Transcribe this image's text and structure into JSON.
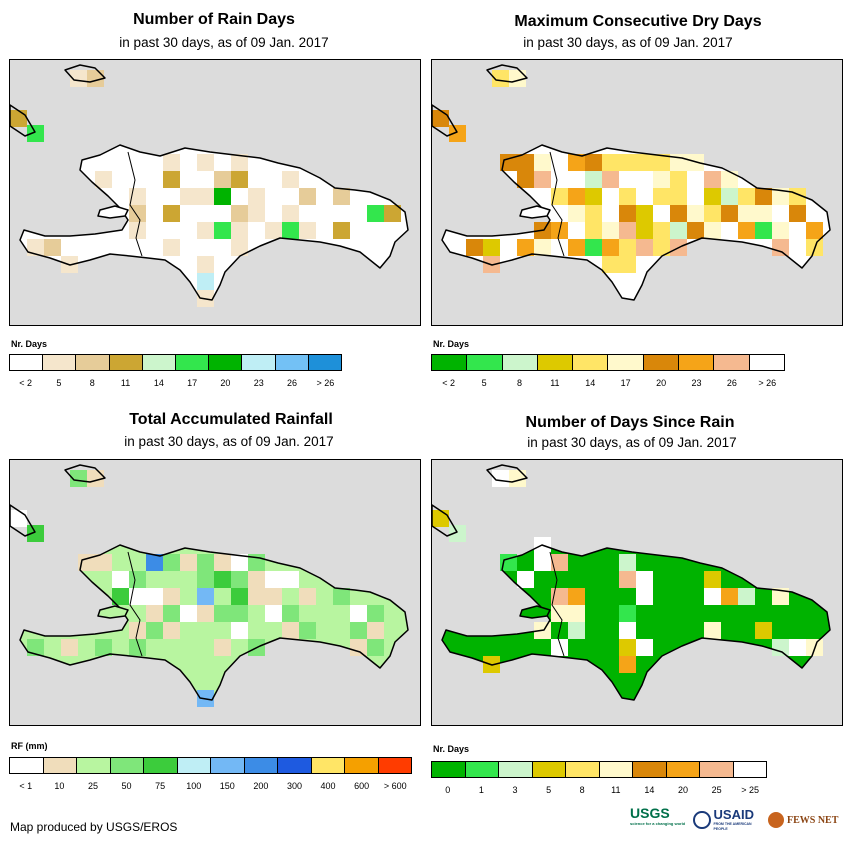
{
  "panels": [
    {
      "title": "Number of Rain Days",
      "subtitle": "in past 30 days, as of 09 Jan. 2017",
      "legend_title": "Nr. Days",
      "legend_colors": [
        "#ffffff",
        "#f5e6cc",
        "#e6cc99",
        "#cca633",
        "#ccf5cc",
        "#33e64d",
        "#00b300",
        "#bfeef5",
        "#73c1f5",
        "#1e90d9"
      ],
      "legend_ticks": [
        "< 2",
        "5",
        "8",
        "11",
        "14",
        "17",
        "20",
        "23",
        "26",
        "> 26"
      ],
      "fill": "#ffffff",
      "cells": [
        {
          "c": "#f5e6cc",
          "n": 22
        },
        {
          "c": "#e6cc99",
          "n": 6
        },
        {
          "c": "#cca633",
          "n": 5
        },
        {
          "c": "#33e64d",
          "n": 3
        },
        {
          "c": "#00b300",
          "n": 1
        },
        {
          "c": "#bfeef5",
          "n": 1
        }
      ]
    },
    {
      "title": "Maximum Consecutive Dry Days",
      "subtitle": "in past 30 days, as of 09 Jan. 2017",
      "legend_title": "Nr. Days",
      "legend_colors": [
        "#00b300",
        "#33e64d",
        "#ccf5cc",
        "#ddc900",
        "#ffe566",
        "#fff9cc",
        "#d9870a",
        "#f5a418",
        "#f5b990",
        "#ffffff"
      ],
      "legend_ticks": [
        "< 2",
        "5",
        "8",
        "11",
        "14",
        "17",
        "20",
        "23",
        "26",
        "> 26"
      ],
      "fill": "#ffffff",
      "cells": [
        {
          "c": "#ffe566",
          "n": 20
        },
        {
          "c": "#fff9cc",
          "n": 14
        },
        {
          "c": "#d9870a",
          "n": 12
        },
        {
          "c": "#f5a418",
          "n": 8
        },
        {
          "c": "#f5b990",
          "n": 8
        },
        {
          "c": "#ddc900",
          "n": 5
        },
        {
          "c": "#ccf5cc",
          "n": 3
        },
        {
          "c": "#33e64d",
          "n": 2
        }
      ]
    },
    {
      "title": "Total Accumulated Rainfall",
      "subtitle": "in past 30 days, as of 09 Jan. 2017",
      "legend_title": "RF (mm)",
      "legend_colors": [
        "#ffffff",
        "#f0ddbb",
        "#b8f5a0",
        "#7fe67a",
        "#3ccc3c",
        "#bfeef5",
        "#73b8f5",
        "#3c8ce6",
        "#1e5ae0",
        "#ffe566",
        "#f5a000",
        "#ff3c00"
      ],
      "legend_ticks": [
        "< 1",
        "10",
        "25",
        "50",
        "75",
        "100",
        "150",
        "200",
        "300",
        "400",
        "600",
        "> 600"
      ],
      "fill": "#b8f5a0",
      "cells": [
        {
          "c": "#7fe67a",
          "n": 20
        },
        {
          "c": "#f0ddbb",
          "n": 18
        },
        {
          "c": "#ffffff",
          "n": 10
        },
        {
          "c": "#3ccc3c",
          "n": 3
        },
        {
          "c": "#73b8f5",
          "n": 2
        },
        {
          "c": "#3c8ce6",
          "n": 1
        }
      ]
    },
    {
      "title": "Number of Days Since Rain",
      "subtitle": "in past 30 days, as of 09 Jan. 2017",
      "legend_title": "Nr. Days",
      "legend_colors": [
        "#00b300",
        "#33e64d",
        "#ccf5cc",
        "#ddc900",
        "#ffe566",
        "#fff9cc",
        "#d9870a",
        "#f5a418",
        "#f5b990",
        "#ffffff"
      ],
      "legend_ticks": [
        "0",
        "1",
        "3",
        "5",
        "8",
        "11",
        "14",
        "20",
        "25",
        "> 25"
      ],
      "fill": "#00b300",
      "cells": [
        {
          "c": "#ffffff",
          "n": 10
        },
        {
          "c": "#fff9cc",
          "n": 6
        },
        {
          "c": "#ddc900",
          "n": 4
        },
        {
          "c": "#ccf5cc",
          "n": 4
        },
        {
          "c": "#f5a418",
          "n": 3
        },
        {
          "c": "#f5b990",
          "n": 3
        },
        {
          "c": "#33e64d",
          "n": 2
        }
      ]
    }
  ],
  "footer": "Map produced by USGS/EROS",
  "logos": {
    "usgs": "USGS",
    "usgs_tagline": "science for a changing world",
    "usaid": "USAID",
    "usaid_tagline": "FROM THE AMERICAN PEOPLE",
    "fewsnet": "FEWS NET"
  },
  "colors": {
    "map_background": "#dcdcdc",
    "outline": "#000000"
  }
}
